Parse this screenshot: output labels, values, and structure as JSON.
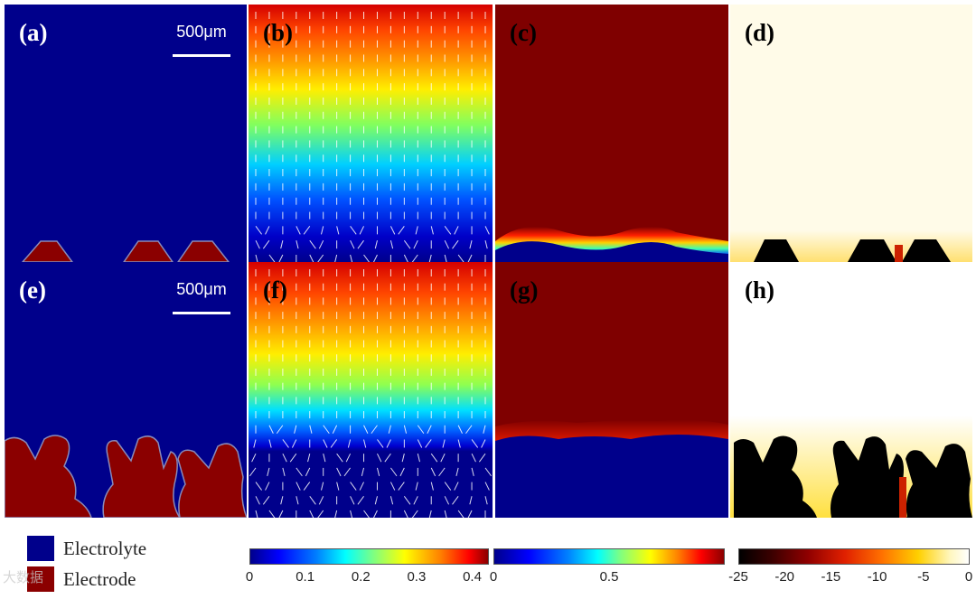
{
  "panels": [
    {
      "label": "(a)"
    },
    {
      "label": "(b)"
    },
    {
      "label": "(c)"
    },
    {
      "label": "(d)"
    },
    {
      "label": "(e)"
    },
    {
      "label": "(f)"
    },
    {
      "label": "(g)"
    },
    {
      "label": "(h)"
    }
  ],
  "scale_bar": {
    "text": "500μm"
  },
  "legend": [
    {
      "label": "Electrolyte",
      "color": "#00008b"
    },
    {
      "label": "Electrode",
      "color": "#8b0000"
    }
  ],
  "colorbars": [
    {
      "ticks": [
        "0",
        "0.1",
        "0.2",
        "0.3",
        "0.4"
      ],
      "tick_values": [
        0,
        0.1,
        0.2,
        0.3,
        0.4
      ],
      "range": [
        0,
        0.43
      ],
      "colormap": "jet"
    },
    {
      "ticks": [
        "0",
        "0.5"
      ],
      "tick_values": [
        0,
        0.5
      ],
      "range": [
        0,
        1.0
      ],
      "colormap": "jet"
    },
    {
      "ticks": [
        "-25",
        "-20",
        "-15",
        "-10",
        "-5",
        "0"
      ],
      "tick_values": [
        -25,
        -20,
        -15,
        -10,
        -5,
        0
      ],
      "range": [
        -25,
        0
      ],
      "colormap": "hot"
    }
  ],
  "watermark": "大数据"
}
